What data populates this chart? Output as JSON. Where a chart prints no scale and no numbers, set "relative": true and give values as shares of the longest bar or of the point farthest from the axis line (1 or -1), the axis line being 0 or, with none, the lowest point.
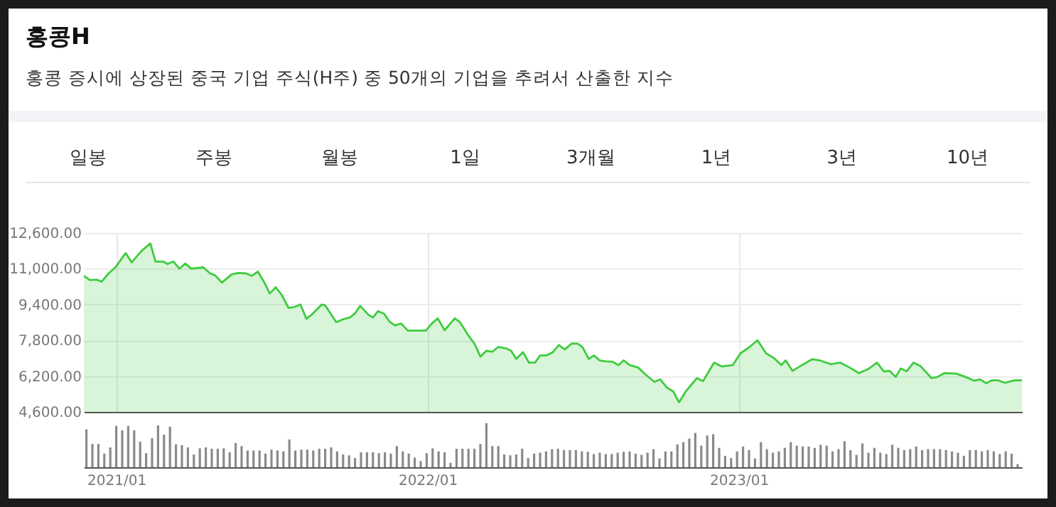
{
  "chart_data": [
    {
      "type": "area",
      "title": "홍콩H",
      "subtitle": "홍콩 증시에 상장된 중국 기업 주식(H주) 중 50개의 기업을 추려서 산출한 지수",
      "annotations": [
        "일봉",
        "주봉",
        "월봉",
        "1일",
        "3개월",
        "1년",
        "3년",
        "10년"
      ],
      "x": [
        "2020-11-24",
        "2020-12-01",
        "2020-12-09",
        "2020-12-15",
        "2020-12-23",
        "2020-12-31",
        "2021-01-12",
        "2021-01-19",
        "2021-01-31",
        "2021-02-10",
        "2021-02-16",
        "2021-02-25",
        "2021-03-02",
        "2021-03-09",
        "2021-03-16",
        "2021-03-23",
        "2021-03-30",
        "2021-04-13",
        "2021-04-21",
        "2021-04-27",
        "2021-05-05",
        "2021-05-16",
        "2021-05-24",
        "2021-06-02",
        "2021-06-09",
        "2021-06-16",
        "2021-06-24",
        "2021-06-30",
        "2021-07-07",
        "2021-07-14",
        "2021-07-22",
        "2021-07-29",
        "2021-08-05",
        "2021-08-12",
        "2021-08-19",
        "2021-08-30",
        "2021-09-03",
        "2021-09-16",
        "2021-09-24",
        "2021-10-02",
        "2021-10-08",
        "2021-10-14",
        "2021-10-24",
        "2021-10-29",
        "2021-11-04",
        "2021-11-11",
        "2021-11-18",
        "2021-11-24",
        "2021-12-01",
        "2021-12-09",
        "2021-12-19",
        "2021-12-30",
        "2022-01-06",
        "2022-01-13",
        "2022-01-21",
        "2022-02-02",
        "2022-02-08",
        "2022-02-18",
        "2022-02-25",
        "2022-03-04",
        "2022-03-11",
        "2022-03-18",
        "2022-03-25",
        "2022-04-03",
        "2022-04-09",
        "2022-04-15",
        "2022-04-23",
        "2022-04-30",
        "2022-05-07",
        "2022-05-13",
        "2022-05-20",
        "2022-05-28",
        "2022-06-04",
        "2022-06-11",
        "2022-06-19",
        "2022-06-26",
        "2022-07-02",
        "2022-07-09",
        "2022-07-15",
        "2022-07-22",
        "2022-07-29",
        "2022-08-06",
        "2022-08-13",
        "2022-08-19",
        "2022-08-26",
        "2022-09-05",
        "2022-09-14",
        "2022-09-24",
        "2022-10-01",
        "2022-10-09",
        "2022-10-16",
        "2022-10-23",
        "2022-10-31",
        "2022-11-13",
        "2022-11-20",
        "2022-11-28",
        "2022-12-03",
        "2022-12-12",
        "2022-12-25",
        "2023-01-03",
        "2023-01-13",
        "2023-01-23",
        "2023-02-02",
        "2023-02-11",
        "2023-02-20",
        "2023-02-25",
        "2023-03-05",
        "2023-03-16",
        "2023-03-28",
        "2023-04-06",
        "2023-04-19",
        "2023-04-30",
        "2023-05-11",
        "2023-05-22",
        "2023-06-02",
        "2023-06-12",
        "2023-06-20",
        "2023-06-27",
        "2023-07-04",
        "2023-07-10",
        "2023-07-17",
        "2023-07-25",
        "2023-08-02",
        "2023-08-15",
        "2023-08-22",
        "2023-08-30",
        "2023-09-13",
        "2023-09-24",
        "2023-10-04",
        "2023-10-11",
        "2023-10-18",
        "2023-10-25",
        "2023-11-01",
        "2023-11-09",
        "2023-11-20",
        "2023-11-29"
      ],
      "series": [
        {
          "color": "#3fcc3f",
          "values": [
            10680,
            10490,
            10510,
            10420,
            10790,
            11060,
            11700,
            11280,
            11810,
            12130,
            11320,
            11320,
            11210,
            11320,
            11000,
            11230,
            11000,
            11060,
            10790,
            10700,
            10380,
            10740,
            10810,
            10790,
            10680,
            10870,
            10360,
            9890,
            10170,
            9830,
            9250,
            9290,
            9400,
            8760,
            8970,
            9400,
            9360,
            8610,
            8740,
            8820,
            9000,
            9340,
            8930,
            8820,
            9100,
            8990,
            8610,
            8460,
            8550,
            8230,
            8230,
            8230,
            8550,
            8780,
            8250,
            8780,
            8610,
            8010,
            7650,
            7070,
            7330,
            7290,
            7500,
            7440,
            7330,
            6970,
            7270,
            6800,
            6800,
            7120,
            7120,
            7270,
            7590,
            7390,
            7650,
            7650,
            7480,
            6970,
            7120,
            6900,
            6860,
            6840,
            6690,
            6900,
            6690,
            6580,
            6260,
            5940,
            6050,
            5670,
            5520,
            5030,
            5520,
            6110,
            5970,
            6480,
            6800,
            6630,
            6690,
            7220,
            7480,
            7800,
            7220,
            7010,
            6690,
            6900,
            6430,
            6690,
            6950,
            6900,
            6730,
            6800,
            6580,
            6330,
            6520,
            6800,
            6410,
            6430,
            6160,
            6540,
            6410,
            6800,
            6650,
            6110,
            6160,
            6330,
            6310,
            6160,
            5990,
            6050,
            5880,
            6010,
            6010,
            5900,
            6010,
            6010
          ]
        }
      ],
      "xlim": [
        "2020-11-24",
        "2023-11-29"
      ],
      "xticks": [
        {
          "value": "2021-01-01",
          "label": null
        },
        {
          "value": "2022-01-01",
          "label": null
        },
        {
          "value": "2023-01-01",
          "label": null
        }
      ],
      "ylim": [
        4600,
        12600
      ],
      "yticks": [
        {
          "value": 4600,
          "label": "4,600.00"
        },
        {
          "value": 6200,
          "label": "6,200.00"
        },
        {
          "value": 7800,
          "label": "7,800.00"
        },
        {
          "value": 9400,
          "label": "9,400.00"
        },
        {
          "value": 11000,
          "label": "11,000.00"
        },
        {
          "value": 12600,
          "label": "12,600.00"
        }
      ],
      "grid": true,
      "tick_labels": "y"
    },
    {
      "type": "bar",
      "relative": true,
      "x": [
        "2020-11-27",
        "2020-12-04",
        "2020-12-11",
        "2020-12-18",
        "2020-12-25",
        "2021-01-01",
        "2021-01-08",
        "2021-01-15",
        "2021-01-22",
        "2021-01-29",
        "2021-02-05",
        "2021-02-12",
        "2021-02-19",
        "2021-02-26",
        "2021-03-05",
        "2021-03-12",
        "2021-03-19",
        "2021-03-26",
        "2021-04-02",
        "2021-04-09",
        "2021-04-16",
        "2021-04-23",
        "2021-04-30",
        "2021-05-07",
        "2021-05-14",
        "2021-05-21",
        "2021-05-28",
        "2021-06-04",
        "2021-06-11",
        "2021-06-18",
        "2021-06-25",
        "2021-07-02",
        "2021-07-09",
        "2021-07-16",
        "2021-07-23",
        "2021-07-30",
        "2021-08-06",
        "2021-08-13",
        "2021-08-20",
        "2021-08-27",
        "2021-09-03",
        "2021-09-10",
        "2021-09-17",
        "2021-09-24",
        "2021-10-01",
        "2021-10-08",
        "2021-10-15",
        "2021-10-22",
        "2021-10-29",
        "2021-11-05",
        "2021-11-12",
        "2021-11-19",
        "2021-11-26",
        "2021-12-03",
        "2021-12-10",
        "2021-12-17",
        "2021-12-24",
        "2021-12-31",
        "2022-01-07",
        "2022-01-14",
        "2022-01-21",
        "2022-01-28",
        "2022-02-04",
        "2022-02-11",
        "2022-02-18",
        "2022-02-25",
        "2022-03-04",
        "2022-03-11",
        "2022-03-18",
        "2022-03-25",
        "2022-04-01",
        "2022-04-08",
        "2022-04-15",
        "2022-04-22",
        "2022-04-29",
        "2022-05-06",
        "2022-05-13",
        "2022-05-20",
        "2022-05-27",
        "2022-06-03",
        "2022-06-10",
        "2022-06-17",
        "2022-06-24",
        "2022-07-01",
        "2022-07-08",
        "2022-07-15",
        "2022-07-22",
        "2022-07-29",
        "2022-08-05",
        "2022-08-12",
        "2022-08-19",
        "2022-08-26",
        "2022-09-02",
        "2022-09-09",
        "2022-09-16",
        "2022-09-23",
        "2022-09-30",
        "2022-10-07",
        "2022-10-14",
        "2022-10-21",
        "2022-10-28",
        "2022-11-04",
        "2022-11-11",
        "2022-11-18",
        "2022-11-25",
        "2022-12-02",
        "2022-12-09",
        "2022-12-16",
        "2022-12-23",
        "2022-12-30",
        "2023-01-06",
        "2023-01-13",
        "2023-01-20",
        "2023-01-27",
        "2023-02-03",
        "2023-02-10",
        "2023-02-17",
        "2023-02-24",
        "2023-03-03",
        "2023-03-10",
        "2023-03-17",
        "2023-03-24",
        "2023-03-31",
        "2023-04-07",
        "2023-04-14",
        "2023-04-21",
        "2023-04-28",
        "2023-05-05",
        "2023-05-12",
        "2023-05-19",
        "2023-05-26",
        "2023-06-02",
        "2023-06-09",
        "2023-06-16",
        "2023-06-23",
        "2023-06-30",
        "2023-07-07",
        "2023-07-14",
        "2023-07-21",
        "2023-07-28",
        "2023-08-04",
        "2023-08-11",
        "2023-08-18",
        "2023-08-25",
        "2023-09-01",
        "2023-09-08",
        "2023-09-15",
        "2023-09-22",
        "2023-09-29",
        "2023-10-06",
        "2023-10-13",
        "2023-10-20",
        "2023-10-27",
        "2023-11-03",
        "2023-11-10",
        "2023-11-17",
        "2023-11-24"
      ],
      "series": [
        {
          "color": "#8a8a8a",
          "values": [
            0.86,
            0.53,
            0.53,
            0.31,
            0.45,
            0.94,
            0.84,
            0.94,
            0.84,
            0.58,
            0.32,
            0.66,
            0.95,
            0.74,
            0.92,
            0.52,
            0.5,
            0.45,
            0.29,
            0.43,
            0.45,
            0.42,
            0.42,
            0.43,
            0.34,
            0.55,
            0.48,
            0.38,
            0.38,
            0.38,
            0.31,
            0.4,
            0.38,
            0.36,
            0.63,
            0.38,
            0.4,
            0.4,
            0.38,
            0.42,
            0.42,
            0.45,
            0.36,
            0.29,
            0.27,
            0.21,
            0.34,
            0.34,
            0.34,
            0.32,
            0.34,
            0.31,
            0.48,
            0.36,
            0.31,
            0.22,
            0.14,
            0.32,
            0.43,
            0.36,
            0.34,
            0.1,
            0.42,
            0.42,
            0.42,
            0.42,
            0.53,
            1,
            0.48,
            0.48,
            0.29,
            0.27,
            0.29,
            0.42,
            0.21,
            0.31,
            0.33,
            0.36,
            0.41,
            0.42,
            0.39,
            0.39,
            0.39,
            0.36,
            0.35,
            0.3,
            0.33,
            0.3,
            0.3,
            0.33,
            0.35,
            0.36,
            0.31,
            0.28,
            0.33,
            0.41,
            0.2,
            0.36,
            0.36,
            0.52,
            0.57,
            0.65,
            0.78,
            0.49,
            0.72,
            0.75,
            0.44,
            0.26,
            0.21,
            0.36,
            0.47,
            0.39,
            0.2,
            0.57,
            0.41,
            0.33,
            0.36,
            0.44,
            0.57,
            0.49,
            0.47,
            0.47,
            0.44,
            0.51,
            0.49,
            0.36,
            0.41,
            0.59,
            0.39,
            0.28,
            0.54,
            0.33,
            0.44,
            0.33,
            0.3,
            0.51,
            0.44,
            0.39,
            0.41,
            0.47,
            0.39,
            0.41,
            0.41,
            0.41,
            0.39,
            0.36,
            0.33,
            0.26,
            0.39,
            0.39,
            0.36,
            0.39,
            0.36,
            0.3,
            0.36,
            0.31,
            0.07
          ]
        }
      ],
      "xlim": [
        "2020-11-24",
        "2023-11-29"
      ],
      "xticks": [
        {
          "value": "2021-01-01",
          "label": "2021/01"
        },
        {
          "value": "2022-01-01",
          "label": "2022/01"
        },
        {
          "value": "2023-01-01",
          "label": "2023/01"
        }
      ],
      "tick_labels": "x"
    }
  ]
}
